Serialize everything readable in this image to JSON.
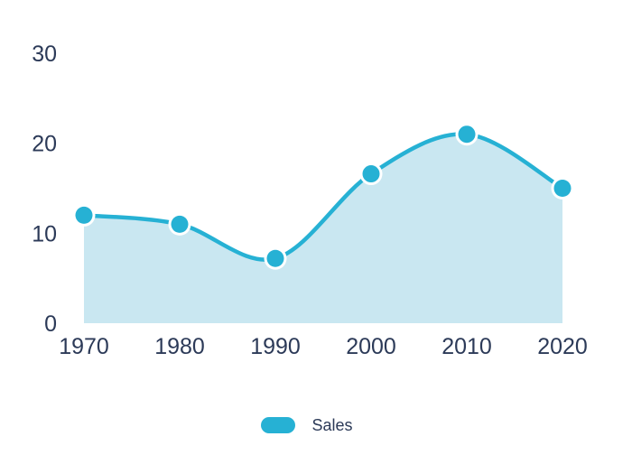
{
  "chart_data": {
    "type": "area",
    "title": "",
    "xlabel": "",
    "ylabel": "",
    "categories": [
      "1970",
      "1980",
      "1990",
      "2000",
      "2010",
      "2020"
    ],
    "series": [
      {
        "name": "Sales",
        "values": [
          12,
          11,
          7.2,
          16.6,
          21,
          15
        ]
      }
    ],
    "ylim": [
      0,
      30
    ],
    "yticks": [
      0,
      10,
      20,
      30
    ],
    "grid": false,
    "smooth": true,
    "markers": true,
    "legend_position": "bottom"
  },
  "legend": {
    "items": [
      {
        "label": "Sales",
        "color": "#26b1d4"
      }
    ]
  },
  "colors": {
    "line": "#26b1d4",
    "area": "#c9e7f1",
    "marker": "#26b1d4",
    "marker_ring": "#ffffff",
    "axis_text": "#2c3a58",
    "background": "#ffffff"
  }
}
